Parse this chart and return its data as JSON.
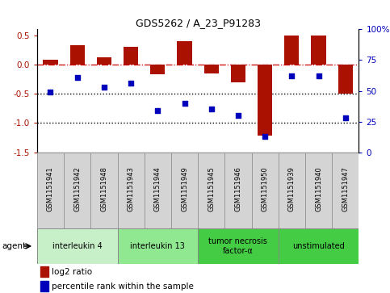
{
  "title": "GDS5262 / A_23_P91283",
  "samples": [
    "GSM1151941",
    "GSM1151942",
    "GSM1151948",
    "GSM1151943",
    "GSM1151944",
    "GSM1151949",
    "GSM1151945",
    "GSM1151946",
    "GSM1151950",
    "GSM1151939",
    "GSM1151940",
    "GSM1151947"
  ],
  "log2_ratio": [
    0.08,
    0.33,
    0.12,
    0.3,
    -0.17,
    0.4,
    -0.15,
    -0.3,
    -1.22,
    0.5,
    0.5,
    -0.5
  ],
  "percentile_rank": [
    49,
    61,
    53,
    56,
    34,
    40,
    35,
    30,
    13,
    62,
    62,
    28
  ],
  "agents": [
    {
      "label": "interleukin 4",
      "start": 0,
      "end": 3,
      "color": "#c8f0c8"
    },
    {
      "label": "interleukin 13",
      "start": 3,
      "end": 6,
      "color": "#90e890"
    },
    {
      "label": "tumor necrosis\nfactor-α",
      "start": 6,
      "end": 9,
      "color": "#44cc44"
    },
    {
      "label": "unstimulated",
      "start": 9,
      "end": 12,
      "color": "#44cc44"
    }
  ],
  "ylim_left": [
    -1.5,
    0.6
  ],
  "ylim_right": [
    0,
    100
  ],
  "bar_color": "#aa1100",
  "scatter_color": "#0000bb",
  "hline_color": "#cc0000",
  "dotline_color": "#000000",
  "left_yticks": [
    -1.5,
    -1.0,
    -0.5,
    0.0,
    0.5
  ],
  "right_yticks": [
    0,
    25,
    50,
    75,
    100
  ],
  "bar_width": 0.55
}
